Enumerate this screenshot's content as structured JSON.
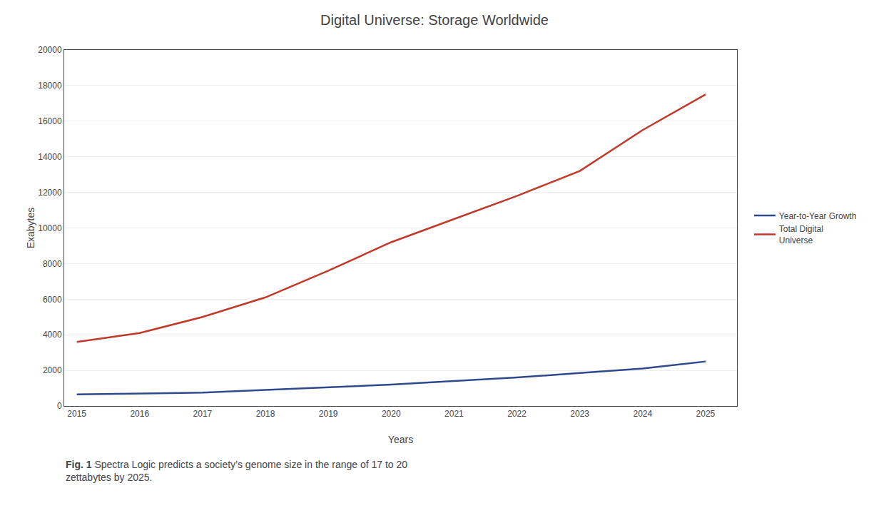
{
  "chart_data": {
    "type": "line",
    "title": "Digital Universe: Storage Worldwide",
    "xlabel": "Years",
    "ylabel": "Exabytes",
    "x": [
      2015,
      2016,
      2017,
      2018,
      2019,
      2020,
      2021,
      2022,
      2023,
      2024,
      2025
    ],
    "series": [
      {
        "name": "Total Digital\nUniverse",
        "color": "#C0392B",
        "values": [
          3600,
          4100,
          5000,
          6100,
          7600,
          9200,
          10500,
          11800,
          13200,
          15500,
          17500
        ]
      },
      {
        "name": "Year-to-Year Growth",
        "color": "#2E4A8C",
        "values": [
          650,
          700,
          750,
          900,
          1050,
          1200,
          1400,
          1600,
          1850,
          2100,
          2500
        ]
      }
    ],
    "xlim": [
      2014.8,
      2025.5
    ],
    "xticks": [
      2015,
      2016,
      2017,
      2018,
      2019,
      2020,
      2021,
      2022,
      2023,
      2024,
      2025
    ],
    "ylim": [
      0,
      20000
    ],
    "yticks": [
      0,
      2000,
      4000,
      6000,
      8000,
      10000,
      12000,
      14000,
      16000,
      18000,
      20000
    ],
    "grid": "y",
    "legend": "right",
    "annotations": [
      "Fig. 1",
      " Spectra Logic predicts a society’s genome size in the range of 17 to 20\nzettabytes by 2025."
    ]
  }
}
